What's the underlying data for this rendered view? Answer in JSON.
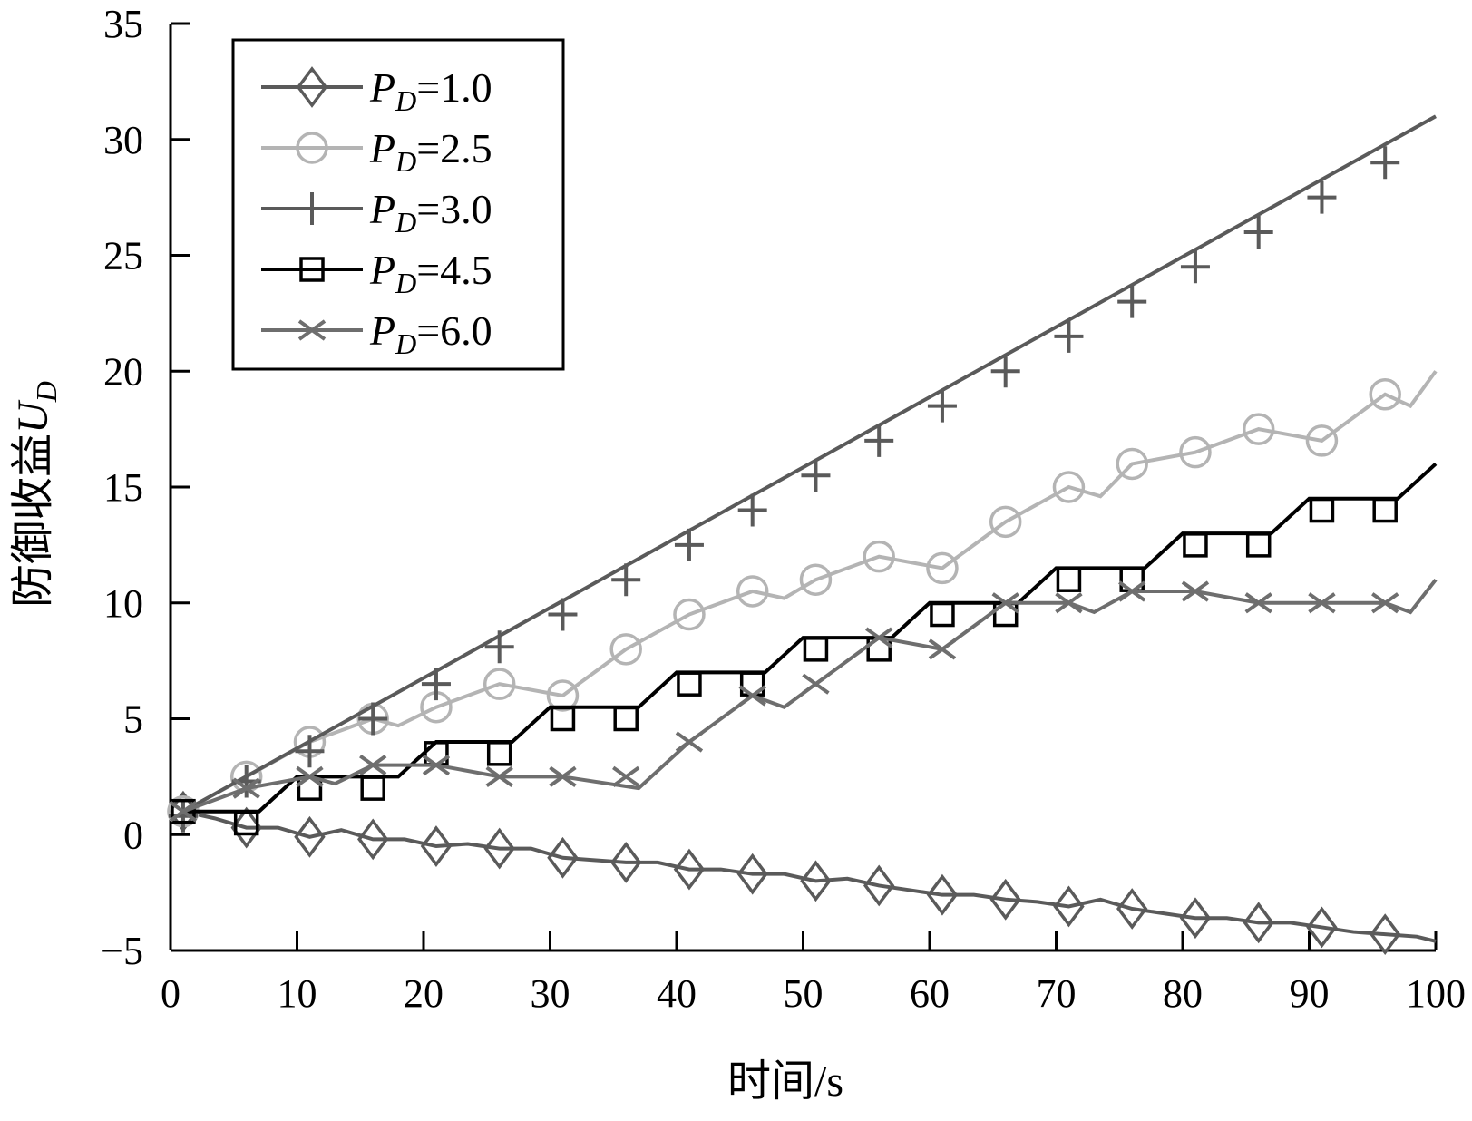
{
  "chart_data": {
    "type": "line",
    "title": "",
    "xlabel": "时间/s",
    "ylabel_text": "防御收益",
    "ylabel_symbol": "U",
    "ylabel_subscript": "D",
    "xlim": [
      0,
      100
    ],
    "ylim": [
      -5,
      35
    ],
    "xticks": [
      "0",
      "10",
      "20",
      "30",
      "40",
      "50",
      "60",
      "70",
      "80",
      "90",
      "100"
    ],
    "yticks": [
      "−5",
      "0",
      "5",
      "10",
      "15",
      "20",
      "25",
      "30",
      "35"
    ],
    "grid": false,
    "legend_position": "top-left",
    "series": [
      {
        "name": "PD=1.0",
        "label_var": "P",
        "label_sub": "D",
        "label_value": "=1.0",
        "marker": "diamond",
        "color": "#5a5a5a",
        "x": [
          1,
          3.5,
          6,
          8.5,
          11,
          13.5,
          16,
          18.5,
          21,
          23.5,
          26,
          28.5,
          31,
          33.5,
          36,
          38.5,
          41,
          43.5,
          46,
          48.5,
          51,
          53.5,
          56,
          58.5,
          61,
          63.5,
          66,
          68.5,
          71,
          73.5,
          76,
          78.5,
          81,
          83.5,
          86,
          88.5,
          91,
          93.5,
          96,
          98.5,
          100
        ],
        "y": [
          1.0,
          0.7,
          0.3,
          0.3,
          -0.1,
          0.2,
          -0.2,
          -0.2,
          -0.5,
          -0.4,
          -0.6,
          -0.6,
          -1.0,
          -1.1,
          -1.2,
          -1.2,
          -1.5,
          -1.5,
          -1.7,
          -1.7,
          -2.0,
          -1.9,
          -2.2,
          -2.4,
          -2.6,
          -2.6,
          -2.8,
          -2.9,
          -3.1,
          -2.8,
          -3.2,
          -3.4,
          -3.6,
          -3.6,
          -3.8,
          -3.8,
          -4.0,
          -4.2,
          -4.3,
          -4.4,
          -4.6
        ],
        "marker_x": [
          1,
          6,
          11,
          16,
          21,
          26,
          31,
          36,
          41,
          46,
          51,
          56,
          61,
          66,
          71,
          76,
          81,
          86,
          91,
          96
        ],
        "marker_y": [
          1.0,
          0.3,
          -0.1,
          -0.2,
          -0.5,
          -0.6,
          -1.0,
          -1.2,
          -1.5,
          -1.7,
          -2.0,
          -2.2,
          -2.6,
          -2.8,
          -3.1,
          -3.2,
          -3.6,
          -3.8,
          -4.0,
          -4.3
        ]
      },
      {
        "name": "PD=2.5",
        "label_var": "P",
        "label_sub": "D",
        "label_value": "=2.5",
        "marker": "circle",
        "color": "#b4b4b4",
        "x": [
          1,
          6,
          11,
          16,
          18,
          21,
          26,
          31,
          36,
          41,
          46,
          48.5,
          51,
          56,
          61,
          66,
          71,
          73.5,
          76,
          81,
          86,
          91,
          96,
          98,
          100
        ],
        "y": [
          1.0,
          2.5,
          4.0,
          5.0,
          4.7,
          5.5,
          6.5,
          6.0,
          8.0,
          9.5,
          10.5,
          10.2,
          11.0,
          12.0,
          11.5,
          13.5,
          15.0,
          14.6,
          16.0,
          16.5,
          17.5,
          17.0,
          19.0,
          18.5,
          20.0
        ],
        "marker_x": [
          1,
          6,
          11,
          16,
          21,
          26,
          31,
          36,
          41,
          46,
          51,
          56,
          61,
          66,
          71,
          76,
          81,
          86,
          91,
          96
        ],
        "marker_y": [
          1.0,
          2.5,
          4.0,
          5.0,
          5.5,
          6.5,
          6.0,
          8.0,
          9.5,
          10.5,
          11.0,
          12.0,
          11.5,
          13.5,
          15.0,
          16.0,
          16.5,
          17.5,
          17.0,
          19.0
        ]
      },
      {
        "name": "PD=3.0",
        "label_var": "P",
        "label_sub": "D",
        "label_value": "=3.0",
        "marker": "plus",
        "color": "#5a5a5a",
        "x": [
          1,
          100
        ],
        "y": [
          1.0,
          31.0
        ],
        "marker_x": [
          1,
          6,
          11,
          16,
          21,
          26,
          31,
          36,
          41,
          46,
          51,
          56,
          61,
          66,
          71,
          76,
          81,
          86,
          91,
          96
        ],
        "marker_y": [
          0.8,
          2.3,
          3.6,
          5.0,
          6.5,
          8.1,
          9.5,
          11.0,
          12.5,
          14.0,
          15.5,
          17.0,
          18.5,
          20.0,
          21.5,
          23.0,
          24.5,
          26.0,
          27.5,
          29.0
        ]
      },
      {
        "name": "PD=4.5",
        "label_var": "P",
        "label_sub": "D",
        "label_value": "=4.5",
        "marker": "square",
        "color": "#000000",
        "x": [
          1,
          7,
          10,
          18,
          21,
          27,
          30,
          37,
          40,
          47,
          50,
          57,
          60,
          67,
          70,
          77,
          80,
          87,
          90,
          97,
          100
        ],
        "y": [
          1.0,
          1.0,
          2.5,
          2.5,
          4.0,
          4.0,
          5.5,
          5.5,
          7.0,
          7.0,
          8.5,
          8.5,
          10.0,
          10.0,
          11.5,
          11.5,
          13.0,
          13.0,
          14.5,
          14.5,
          16.0
        ],
        "marker_x": [
          1,
          6,
          11,
          16,
          21,
          26,
          31,
          36,
          41,
          46,
          51,
          56,
          61,
          66,
          71,
          76,
          81,
          86,
          91,
          96
        ],
        "marker_y": [
          1.0,
          0.5,
          2.0,
          2.0,
          3.5,
          3.5,
          5.0,
          5.0,
          6.5,
          6.5,
          8.0,
          8.0,
          9.5,
          9.5,
          11.0,
          11.0,
          12.5,
          12.5,
          14.0,
          14.0
        ]
      },
      {
        "name": "PD=6.0",
        "label_var": "P",
        "label_sub": "D",
        "label_value": "=6.0",
        "marker": "cross",
        "color": "#6e6e6e",
        "x": [
          1,
          6,
          11,
          13,
          16,
          21,
          26,
          31,
          37,
          41,
          46,
          48.5,
          51,
          56,
          61,
          66,
          71,
          73,
          76,
          81,
          86,
          91,
          96,
          98,
          100
        ],
        "y": [
          1.0,
          2.0,
          2.5,
          2.2,
          3.0,
          3.0,
          2.5,
          2.5,
          2.0,
          4.0,
          6.0,
          5.5,
          6.5,
          8.5,
          8.0,
          10.0,
          10.0,
          9.6,
          10.5,
          10.5,
          10.0,
          10.0,
          10.0,
          9.6,
          11.0
        ],
        "marker_x": [
          1,
          6,
          11,
          16,
          21,
          26,
          31,
          36,
          41,
          46,
          51,
          56,
          61,
          66,
          71,
          76,
          81,
          86,
          91,
          96
        ],
        "marker_y": [
          1.0,
          2.0,
          2.5,
          3.0,
          3.0,
          2.5,
          2.5,
          2.5,
          4.0,
          6.0,
          6.5,
          8.5,
          8.0,
          10.0,
          10.0,
          10.5,
          10.5,
          10.0,
          10.0,
          10.0
        ]
      }
    ]
  }
}
